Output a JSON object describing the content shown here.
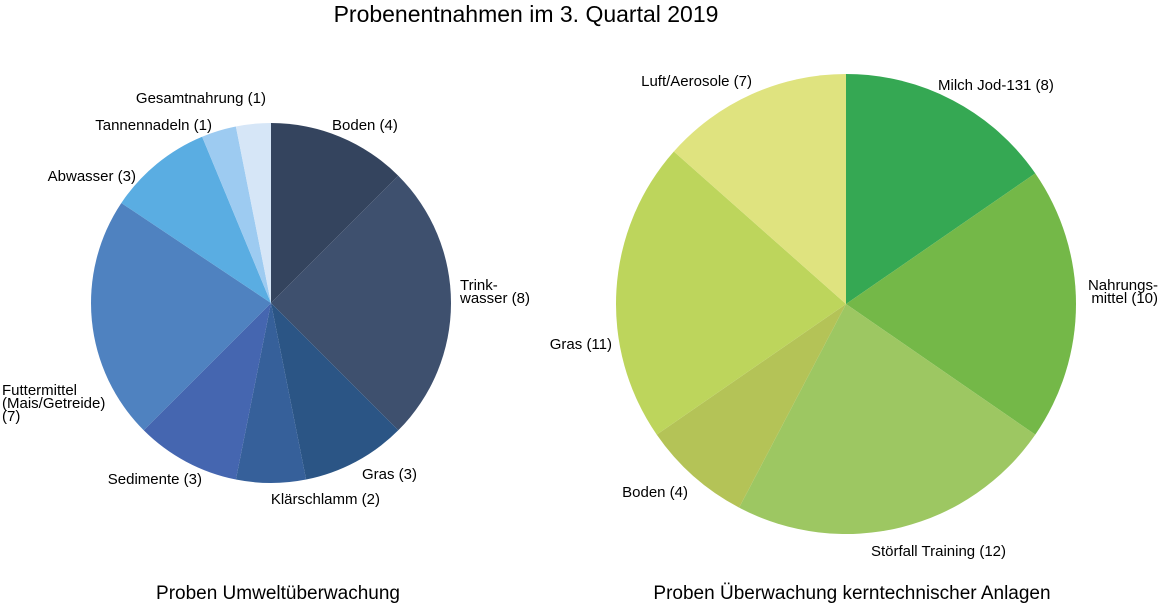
{
  "title": "Probenentnahmen im 3. Quartal 2019",
  "chart_data": [
    {
      "type": "pie",
      "caption": "Proben Umweltüberwachung",
      "slices": [
        {
          "label": [
            "Boden (4)"
          ],
          "value": 4,
          "color": "#34445e"
        },
        {
          "label": [
            "Trink-",
            "wasser (8)"
          ],
          "value": 8,
          "color": "#3e506e"
        },
        {
          "label": [
            "Gras (3)"
          ],
          "value": 3,
          "color": "#2b5585"
        },
        {
          "label": [
            "Klärschlamm (2)"
          ],
          "value": 2,
          "color": "#36609a"
        },
        {
          "label": [
            "Sedimente (3)"
          ],
          "value": 3,
          "color": "#4566b0"
        },
        {
          "label": [
            "Futtermittel",
            "(Mais/Getreide)",
            "(7)"
          ],
          "value": 7,
          "color": "#4f82c0"
        },
        {
          "label": [
            "Abwasser (3)"
          ],
          "value": 3,
          "color": "#5aade2"
        },
        {
          "label": [
            "Tannennadeln (1)"
          ],
          "value": 1,
          "color": "#9dcbf1"
        },
        {
          "label": [
            "Gesamtnahrung (1)"
          ],
          "value": 1,
          "color": "#d6e6f7"
        }
      ]
    },
    {
      "type": "pie",
      "caption": "Proben Überwachung kerntechnischer Anlagen",
      "slices": [
        {
          "label": [
            "Milch Jod-131 (8)"
          ],
          "value": 8,
          "color": "#35a853"
        },
        {
          "label": [
            "Nahrungs-",
            "mittel (10)"
          ],
          "value": 10,
          "color": "#74b848"
        },
        {
          "label": [
            "Störfall Training (12)"
          ],
          "value": 12,
          "color": "#9dc762"
        },
        {
          "label": [
            "Boden (4)"
          ],
          "value": 4,
          "color": "#b4c357"
        },
        {
          "label": [
            "Gras (11)"
          ],
          "value": 11,
          "color": "#bdd55c"
        },
        {
          "label": [
            "Luft/Aerosole (7)"
          ],
          "value": 7,
          "color": "#dfe37f"
        }
      ]
    }
  ]
}
